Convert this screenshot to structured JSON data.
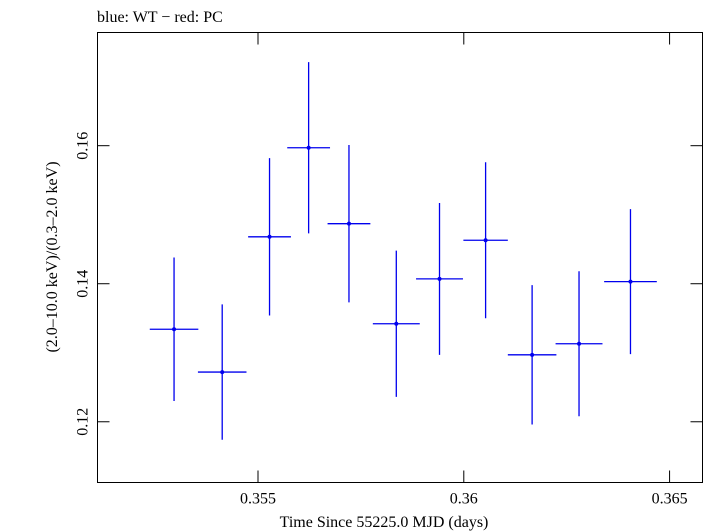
{
  "chart_data": {
    "type": "scatter",
    "title": "blue: WT − red: PC",
    "xlabel": "Time Since 55225.0 MJD (days)",
    "ylabel": "(2.0–10.0 keV)/(0.3–2.0 keV)",
    "xlim": [
      0.3511,
      0.3658
    ],
    "ylim": [
      0.1112,
      0.1764
    ],
    "x_ticks": [
      0.355,
      0.36,
      0.365
    ],
    "x_tick_labels": [
      "0.355",
      "0.36",
      "0.365"
    ],
    "y_ticks": [
      0.12,
      0.14,
      0.16
    ],
    "y_tick_labels": [
      "0.12",
      "0.14",
      "0.16"
    ],
    "series": [
      {
        "name": "WT",
        "color": "#0000ee",
        "points": [
          {
            "x": 0.35296,
            "xerr": 0.00059,
            "y": 0.1334,
            "yerr": 0.0104
          },
          {
            "x": 0.35413,
            "xerr": 0.00059,
            "y": 0.1272,
            "yerr": 0.0098
          },
          {
            "x": 0.35528,
            "xerr": 0.00052,
            "y": 0.1468,
            "yerr": 0.0114
          },
          {
            "x": 0.35623,
            "xerr": 0.00052,
            "y": 0.1597,
            "yerr": 0.0124
          },
          {
            "x": 0.35721,
            "xerr": 0.00052,
            "y": 0.1487,
            "yerr": 0.0114
          },
          {
            "x": 0.35836,
            "xerr": 0.00057,
            "y": 0.1342,
            "yerr": 0.0106
          },
          {
            "x": 0.35941,
            "xerr": 0.00057,
            "y": 0.1407,
            "yerr": 0.011
          },
          {
            "x": 0.36053,
            "xerr": 0.00054,
            "y": 0.1463,
            "yerr": 0.0113
          },
          {
            "x": 0.36166,
            "xerr": 0.00059,
            "y": 0.1297,
            "yerr": 0.0101
          },
          {
            "x": 0.3628,
            "xerr": 0.00057,
            "y": 0.1313,
            "yerr": 0.0105
          },
          {
            "x": 0.36405,
            "xerr": 0.00064,
            "y": 0.1403,
            "yerr": 0.0105
          }
        ]
      }
    ]
  }
}
